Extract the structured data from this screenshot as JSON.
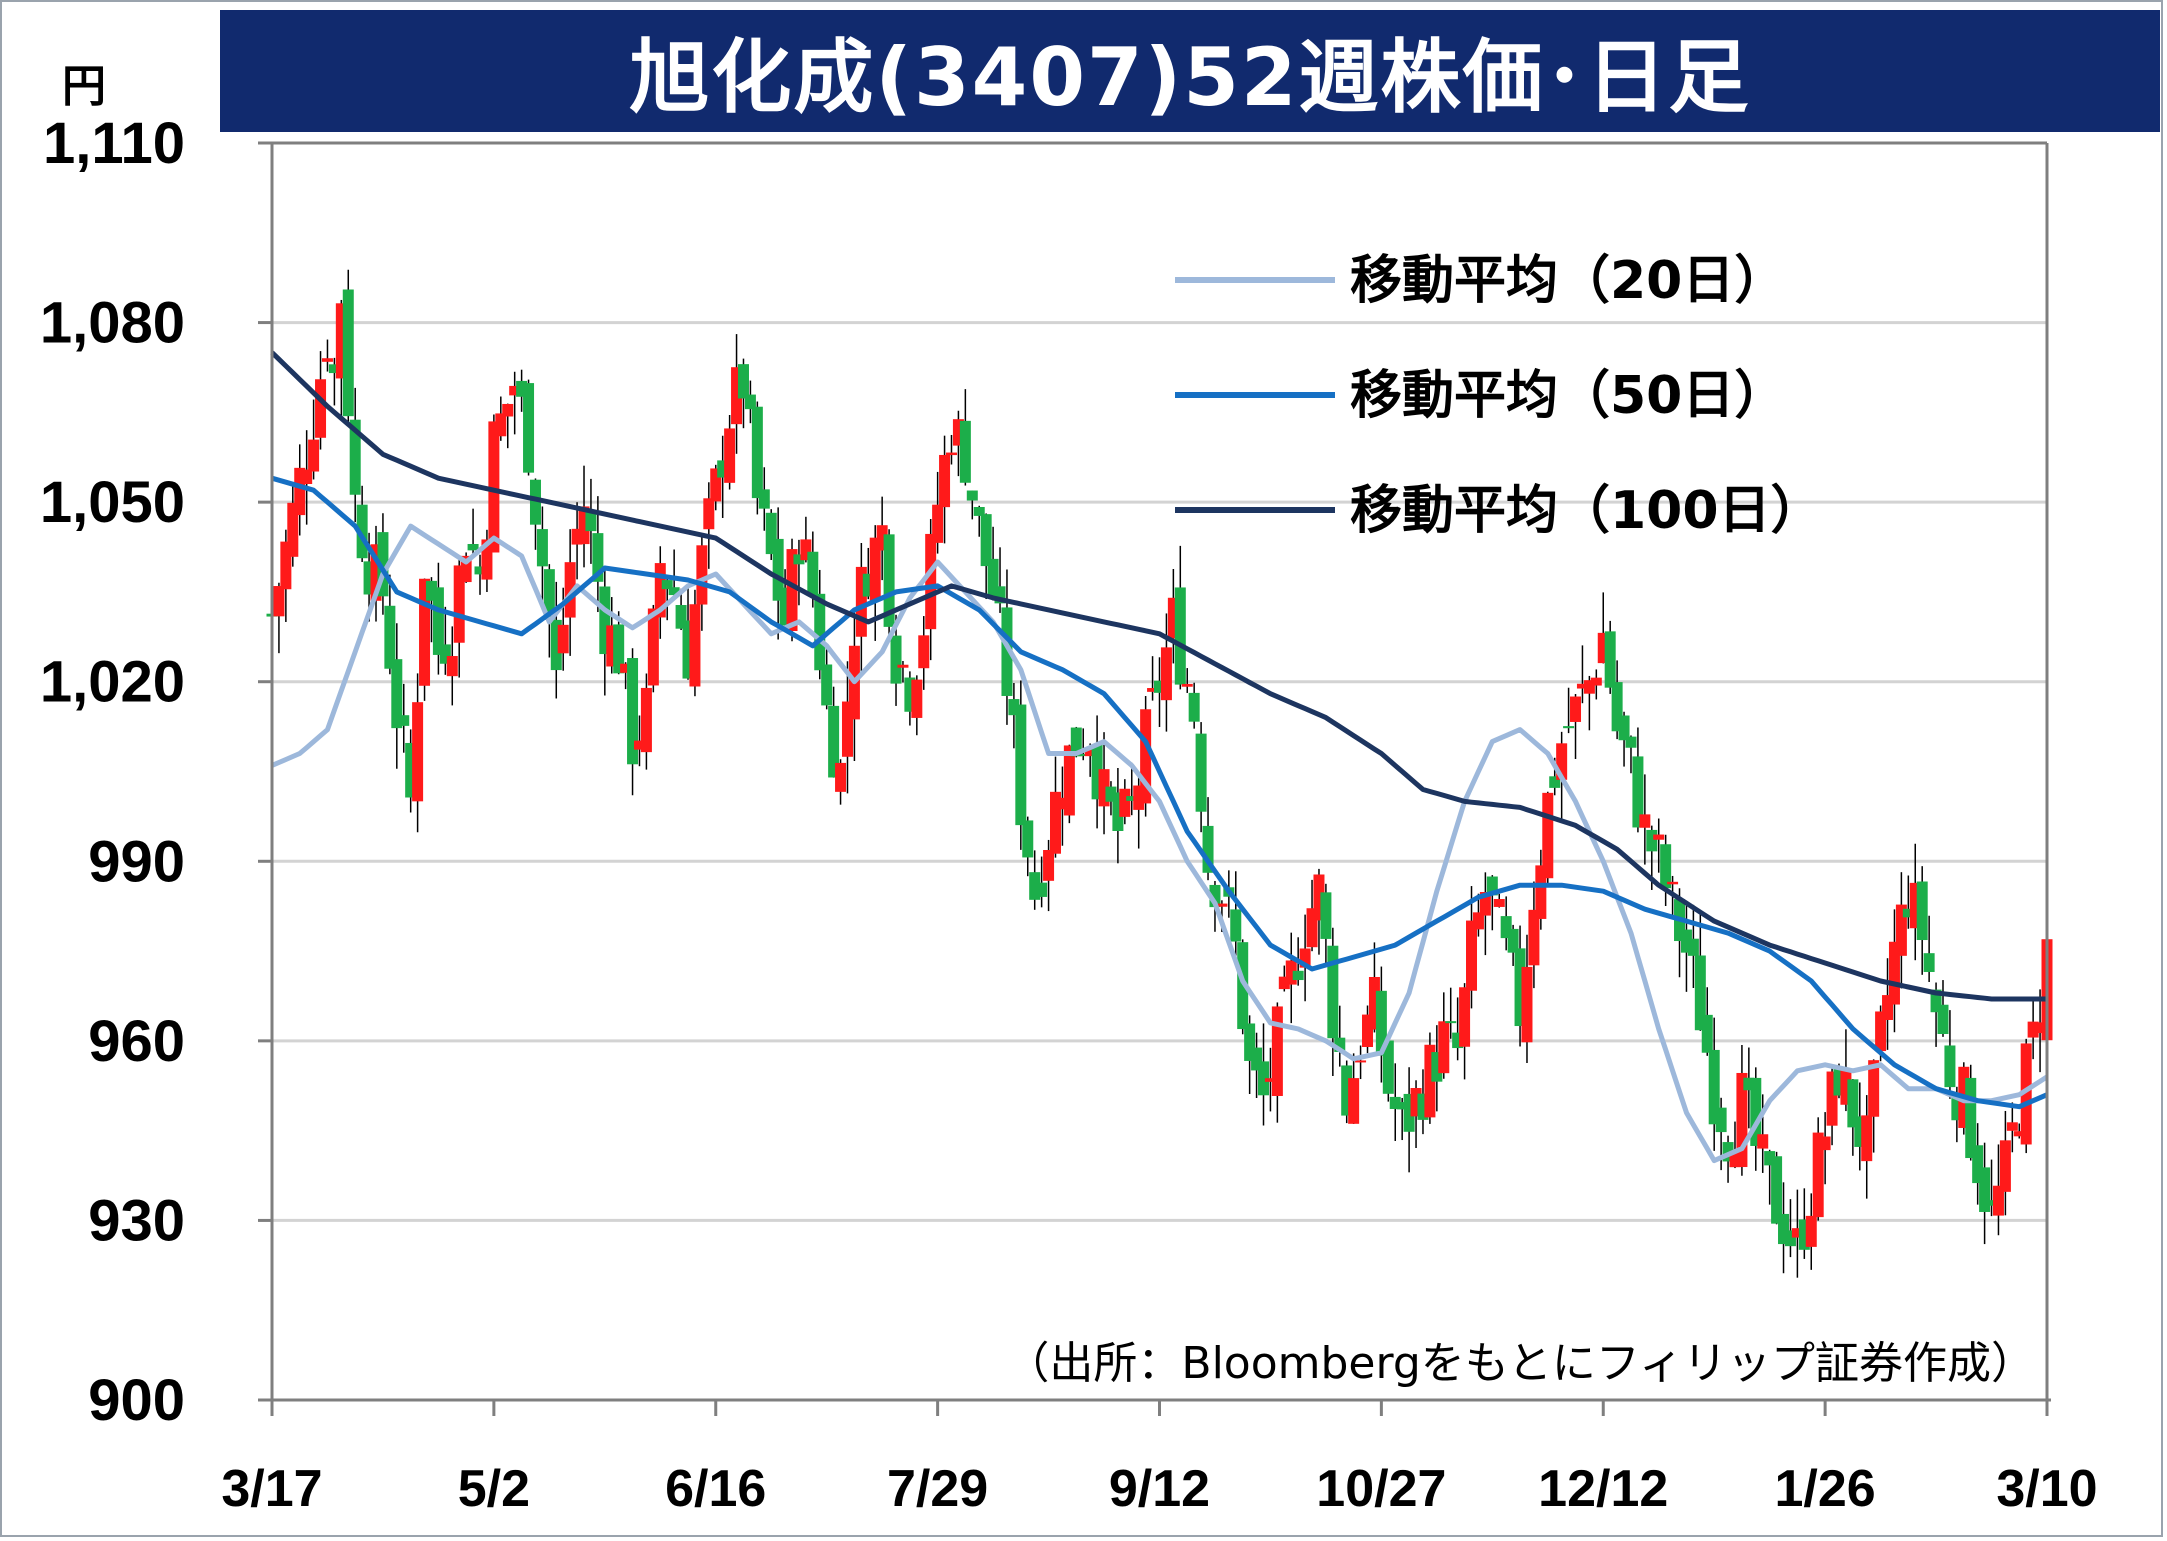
{
  "header": {
    "title": "旭化成(3407)52週株価･日足",
    "unit": "円",
    "source": "（出所：Bloombergをもとにフィリップ証券作成）"
  },
  "colors": {
    "title_bg": "#112a6e",
    "up_candle": "#ff1a1a",
    "down_candle": "#1cae4a",
    "ma20": "#9db8db",
    "ma50": "#1670c4",
    "ma100": "#1d3560",
    "grid": "#d3d3d3",
    "axis": "#7f7f7f"
  },
  "chart_data": {
    "type": "candlestick",
    "title": "旭化成(3407)52週株価･日足",
    "ylabel": "円",
    "ylim": [
      900,
      1110
    ],
    "yticks": [
      900,
      930,
      960,
      990,
      1020,
      1050,
      1080,
      1110
    ],
    "ytick_labels": [
      "900",
      "930",
      "960",
      "990",
      "1,020",
      "1,050",
      "1,080",
      "1,110"
    ],
    "grid": true,
    "legend_position": "top-right",
    "x_tick_labels": [
      "3/17",
      "5/2",
      "6/16",
      "7/29",
      "9/12",
      "10/27",
      "12/12",
      "1/26",
      "3/10"
    ],
    "x_tick_index": [
      0,
      32,
      64,
      96,
      128,
      160,
      192,
      224,
      256
    ],
    "n_days": 257,
    "candle_anchors": [
      [
        0,
        1031
      ],
      [
        3,
        1048
      ],
      [
        6,
        1065
      ],
      [
        8,
        1078
      ],
      [
        9,
        1071
      ],
      [
        10,
        1085
      ],
      [
        12,
        1050
      ],
      [
        14,
        1040
      ],
      [
        16,
        1035
      ],
      [
        18,
        1015
      ],
      [
        20,
        1000
      ],
      [
        22,
        1040
      ],
      [
        24,
        1025
      ],
      [
        26,
        1030
      ],
      [
        28,
        1045
      ],
      [
        30,
        1038
      ],
      [
        32,
        1060
      ],
      [
        35,
        1070
      ],
      [
        37,
        1060
      ],
      [
        39,
        1040
      ],
      [
        41,
        1020
      ],
      [
        43,
        1040
      ],
      [
        45,
        1050
      ],
      [
        48,
        1030
      ],
      [
        50,
        1025
      ],
      [
        52,
        1010
      ],
      [
        54,
        1015
      ],
      [
        56,
        1040
      ],
      [
        58,
        1035
      ],
      [
        60,
        1025
      ],
      [
        62,
        1040
      ],
      [
        64,
        1052
      ],
      [
        66,
        1065
      ],
      [
        68,
        1070
      ],
      [
        70,
        1050
      ],
      [
        72,
        1040
      ],
      [
        74,
        1030
      ],
      [
        76,
        1045
      ],
      [
        78,
        1035
      ],
      [
        80,
        1015
      ],
      [
        82,
        1005
      ],
      [
        84,
        1030
      ],
      [
        86,
        1040
      ],
      [
        88,
        1045
      ],
      [
        90,
        1025
      ],
      [
        92,
        1020
      ],
      [
        94,
        1030
      ],
      [
        96,
        1050
      ],
      [
        98,
        1063
      ],
      [
        100,
        1058
      ],
      [
        102,
        1045
      ],
      [
        104,
        1035
      ],
      [
        106,
        1020
      ],
      [
        108,
        1000
      ],
      [
        110,
        985
      ],
      [
        112,
        995
      ],
      [
        114,
        1005
      ],
      [
        116,
        1010
      ],
      [
        118,
        1012
      ],
      [
        120,
        1000
      ],
      [
        122,
        995
      ],
      [
        124,
        998
      ],
      [
        126,
        1010
      ],
      [
        128,
        1020
      ],
      [
        130,
        1030
      ],
      [
        131,
        1025
      ],
      [
        133,
        1015
      ],
      [
        135,
        990
      ],
      [
        137,
        985
      ],
      [
        139,
        975
      ],
      [
        141,
        955
      ],
      [
        143,
        950
      ],
      [
        145,
        960
      ],
      [
        147,
        970
      ],
      [
        149,
        980
      ],
      [
        151,
        985
      ],
      [
        153,
        965
      ],
      [
        155,
        950
      ],
      [
        157,
        960
      ],
      [
        159,
        965
      ],
      [
        161,
        952
      ],
      [
        163,
        945
      ],
      [
        165,
        950
      ],
      [
        167,
        955
      ],
      [
        169,
        960
      ],
      [
        171,
        958
      ],
      [
        173,
        975
      ],
      [
        175,
        985
      ],
      [
        177,
        978
      ],
      [
        180,
        965
      ],
      [
        182,
        985
      ],
      [
        184,
        1000
      ],
      [
        186,
        1010
      ],
      [
        188,
        1015
      ],
      [
        190,
        1020
      ],
      [
        192,
        1028
      ],
      [
        194,
        1012
      ],
      [
        196,
        1005
      ],
      [
        198,
        995
      ],
      [
        200,
        990
      ],
      [
        202,
        982
      ],
      [
        204,
        975
      ],
      [
        206,
        965
      ],
      [
        208,
        952
      ],
      [
        210,
        945
      ],
      [
        212,
        950
      ],
      [
        214,
        942
      ],
      [
        216,
        935
      ],
      [
        218,
        930
      ],
      [
        220,
        925
      ],
      [
        222,
        935
      ],
      [
        224,
        945
      ],
      [
        226,
        955
      ],
      [
        228,
        948
      ],
      [
        230,
        942
      ],
      [
        232,
        960
      ],
      [
        234,
        975
      ],
      [
        236,
        985
      ],
      [
        238,
        978
      ],
      [
        240,
        965
      ],
      [
        242,
        955
      ],
      [
        244,
        950
      ],
      [
        246,
        940
      ],
      [
        248,
        930
      ],
      [
        250,
        938
      ],
      [
        252,
        950
      ],
      [
        254,
        960
      ],
      [
        256,
        975
      ]
    ],
    "series": [
      {
        "name": "移動平均（20日）",
        "color": "#9db8db",
        "values_anchor": [
          [
            0,
            1006
          ],
          [
            4,
            1008
          ],
          [
            8,
            1012
          ],
          [
            12,
            1025
          ],
          [
            16,
            1038
          ],
          [
            20,
            1046
          ],
          [
            24,
            1043
          ],
          [
            28,
            1040
          ],
          [
            32,
            1044
          ],
          [
            36,
            1041
          ],
          [
            40,
            1030
          ],
          [
            44,
            1036
          ],
          [
            48,
            1032
          ],
          [
            52,
            1029
          ],
          [
            56,
            1032
          ],
          [
            60,
            1036
          ],
          [
            64,
            1038
          ],
          [
            68,
            1033
          ],
          [
            72,
            1028
          ],
          [
            76,
            1030
          ],
          [
            80,
            1026
          ],
          [
            84,
            1020
          ],
          [
            88,
            1025
          ],
          [
            92,
            1034
          ],
          [
            96,
            1040
          ],
          [
            100,
            1035
          ],
          [
            104,
            1030
          ],
          [
            108,
            1022
          ],
          [
            112,
            1008
          ],
          [
            116,
            1008
          ],
          [
            120,
            1010
          ],
          [
            124,
            1006
          ],
          [
            128,
            1000
          ],
          [
            132,
            990
          ],
          [
            136,
            983
          ],
          [
            140,
            970
          ],
          [
            144,
            963
          ],
          [
            148,
            962
          ],
          [
            152,
            960
          ],
          [
            156,
            957
          ],
          [
            160,
            958
          ],
          [
            164,
            968
          ],
          [
            168,
            985
          ],
          [
            172,
            1000
          ],
          [
            176,
            1010
          ],
          [
            180,
            1012
          ],
          [
            184,
            1008
          ],
          [
            188,
            1000
          ],
          [
            192,
            990
          ],
          [
            196,
            978
          ],
          [
            200,
            962
          ],
          [
            204,
            948
          ],
          [
            208,
            940
          ],
          [
            212,
            942
          ],
          [
            216,
            950
          ],
          [
            220,
            955
          ],
          [
            224,
            956
          ],
          [
            228,
            955
          ],
          [
            232,
            956
          ],
          [
            236,
            952
          ],
          [
            240,
            952
          ],
          [
            244,
            950
          ],
          [
            248,
            950
          ],
          [
            252,
            951
          ],
          [
            256,
            954
          ]
        ]
      },
      {
        "name": "移動平均（50日）",
        "color": "#1670c4",
        "values_anchor": [
          [
            0,
            1054
          ],
          [
            6,
            1052
          ],
          [
            12,
            1046
          ],
          [
            18,
            1035
          ],
          [
            24,
            1032
          ],
          [
            30,
            1030
          ],
          [
            36,
            1028
          ],
          [
            42,
            1033
          ],
          [
            48,
            1039
          ],
          [
            54,
            1038
          ],
          [
            60,
            1037
          ],
          [
            66,
            1035
          ],
          [
            72,
            1030
          ],
          [
            78,
            1026
          ],
          [
            84,
            1032
          ],
          [
            90,
            1035
          ],
          [
            96,
            1036
          ],
          [
            102,
            1032
          ],
          [
            108,
            1025
          ],
          [
            114,
            1022
          ],
          [
            120,
            1018
          ],
          [
            126,
            1010
          ],
          [
            132,
            995
          ],
          [
            138,
            985
          ],
          [
            144,
            976
          ],
          [
            150,
            972
          ],
          [
            156,
            974
          ],
          [
            162,
            976
          ],
          [
            168,
            980
          ],
          [
            174,
            984
          ],
          [
            180,
            986
          ],
          [
            186,
            986
          ],
          [
            192,
            985
          ],
          [
            198,
            982
          ],
          [
            204,
            980
          ],
          [
            210,
            978
          ],
          [
            216,
            975
          ],
          [
            222,
            970
          ],
          [
            228,
            962
          ],
          [
            234,
            956
          ],
          [
            240,
            952
          ],
          [
            246,
            950
          ],
          [
            252,
            949
          ],
          [
            256,
            951
          ]
        ]
      },
      {
        "name": "移動平均（100日）",
        "color": "#1d3560",
        "values_anchor": [
          [
            0,
            1075
          ],
          [
            8,
            1066
          ],
          [
            16,
            1058
          ],
          [
            24,
            1054
          ],
          [
            32,
            1052
          ],
          [
            40,
            1050
          ],
          [
            48,
            1048
          ],
          [
            56,
            1046
          ],
          [
            64,
            1044
          ],
          [
            72,
            1038
          ],
          [
            80,
            1033
          ],
          [
            86,
            1030
          ],
          [
            92,
            1033
          ],
          [
            98,
            1036
          ],
          [
            104,
            1034
          ],
          [
            112,
            1032
          ],
          [
            120,
            1030
          ],
          [
            128,
            1028
          ],
          [
            136,
            1023
          ],
          [
            144,
            1018
          ],
          [
            152,
            1014
          ],
          [
            160,
            1008
          ],
          [
            166,
            1002
          ],
          [
            172,
            1000
          ],
          [
            180,
            999
          ],
          [
            188,
            996
          ],
          [
            194,
            992
          ],
          [
            200,
            986
          ],
          [
            208,
            980
          ],
          [
            216,
            976
          ],
          [
            224,
            973
          ],
          [
            232,
            970
          ],
          [
            240,
            968
          ],
          [
            248,
            967
          ],
          [
            256,
            967
          ]
        ]
      }
    ]
  }
}
